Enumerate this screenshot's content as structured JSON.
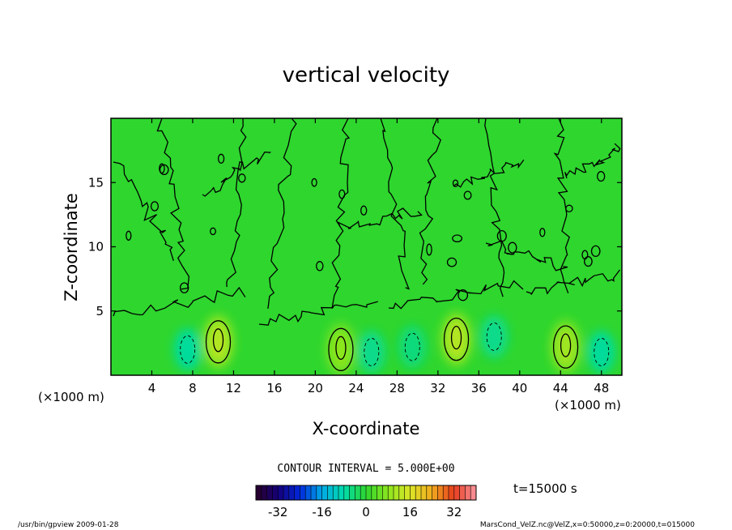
{
  "chart_data": {
    "type": "heatmap",
    "title": "vertical velocity",
    "xlabel": "X-coordinate",
    "ylabel": "Z-coordinate",
    "x_unit_label": "(×1000 m)",
    "y_unit_label": "(×1000 m)",
    "xlim": [
      0,
      50
    ],
    "ylim": [
      0,
      20
    ],
    "x_ticks": [
      4,
      8,
      12,
      16,
      20,
      24,
      28,
      32,
      36,
      40,
      44,
      48
    ],
    "y_ticks": [
      5,
      10,
      15
    ],
    "contour_interval_text": "CONTOUR INTERVAL = 5.000E+00",
    "time_label": "t=15000 s",
    "colorbar": {
      "range": [
        -40,
        40
      ],
      "ticks": [
        -32,
        -16,
        0,
        16,
        32
      ]
    },
    "updrafts": [
      {
        "x": 10.5,
        "z": 2.6,
        "value": 12
      },
      {
        "x": 22.5,
        "z": 2.0,
        "value": 8
      },
      {
        "x": 33.8,
        "z": 2.8,
        "value": 12
      },
      {
        "x": 44.5,
        "z": 2.2,
        "value": 10
      }
    ],
    "downdrafts": [
      {
        "x": 7.5,
        "z": 2.0,
        "value": -7
      },
      {
        "x": 25.5,
        "z": 1.8,
        "value": -6
      },
      {
        "x": 29.5,
        "z": 2.2,
        "value": -5
      },
      {
        "x": 37.5,
        "z": 3.0,
        "value": -6
      },
      {
        "x": 48.0,
        "z": 1.8,
        "value": -7
      }
    ],
    "background_value": 0
  },
  "footer": {
    "left": "/usr/bin/gpview  2009-01-28",
    "right": "MarsCond_VelZ.nc@VelZ,x=0:50000,z=0:20000,t=015000"
  }
}
